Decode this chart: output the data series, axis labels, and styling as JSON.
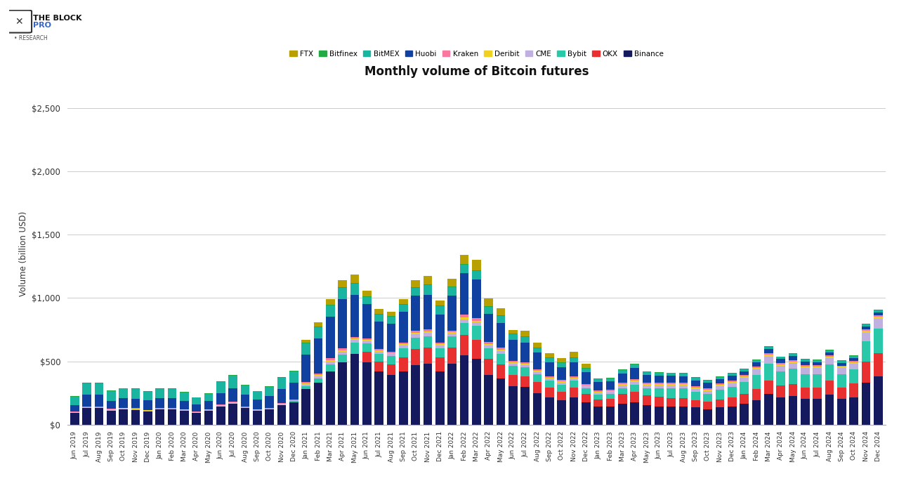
{
  "title": "Monthly volume of Bitcoin futures",
  "ylabel": "Volume (billion USD)",
  "ylim": [
    0,
    2700
  ],
  "yticks": [
    0,
    500,
    1000,
    1500,
    2000,
    2500
  ],
  "ytick_labels": [
    "$0",
    "$500",
    "$1,000",
    "$1,500",
    "$2,000",
    "$2,500"
  ],
  "background_color": "#ffffff",
  "grid_color": "#cccccc",
  "exchanges": [
    "Binance",
    "OKX",
    "Bybit",
    "CME",
    "Deribit",
    "Kraken",
    "Huobi",
    "BitMEX",
    "Bitfinex",
    "FTX"
  ],
  "colors": {
    "FTX": "#b8a000",
    "Bitfinex": "#22aa44",
    "BitMEX": "#1ab5a0",
    "Huobi": "#1040a0",
    "Kraken": "#f878a0",
    "Deribit": "#f0d020",
    "CME": "#c0b0e0",
    "Bybit": "#28c8a8",
    "OKX": "#e83030",
    "Binance": "#151a5e"
  },
  "months": [
    "Jun 2019",
    "Jul 2019",
    "Aug 2019",
    "Sep 2019",
    "Oct 2019",
    "Nov 2019",
    "Dec 2019",
    "Jan 2020",
    "Feb 2020",
    "Mar 2020",
    "Apr 2020",
    "May 2020",
    "Jun 2020",
    "Jul 2020",
    "Aug 2020",
    "Sep 2020",
    "Oct 2020",
    "Nov 2020",
    "Dec 2020",
    "Jan 2021",
    "Feb 2021",
    "Mar 2021",
    "Apr 2021",
    "May 2021",
    "Jun 2021",
    "Jul 2021",
    "Aug 2021",
    "Sep 2021",
    "Oct 2021",
    "Nov 2021",
    "Dec 2021",
    "Jan 2022",
    "Feb 2022",
    "Mar 2022",
    "Apr 2022",
    "May 2022",
    "Jun 2022",
    "Jul 2022",
    "Aug 2022",
    "Sep 2022",
    "Oct 2022",
    "Nov 2022",
    "Dec 2022",
    "Jan 2023",
    "Feb 2023",
    "Mar 2023",
    "Apr 2023",
    "May 2023",
    "Jun 2023",
    "Jul 2023",
    "Aug 2023",
    "Sep 2023",
    "Oct 2023",
    "Nov 2023",
    "Dec 2023",
    "Jan 2024",
    "Feb 2024",
    "Mar 2024",
    "Apr 2024",
    "May 2024",
    "Jun 2024",
    "Jul 2024",
    "Aug 2024",
    "Sep 2024",
    "Oct 2024",
    "Nov 2024",
    "Dec 2024"
  ],
  "data": {
    "Binance": [
      90,
      130,
      130,
      110,
      120,
      115,
      105,
      120,
      120,
      110,
      90,
      110,
      145,
      165,
      130,
      110,
      120,
      155,
      175,
      280,
      330,
      420,
      490,
      560,
      490,
      420,
      390,
      420,
      470,
      480,
      420,
      480,
      550,
      520,
      390,
      365,
      305,
      295,
      250,
      215,
      195,
      215,
      175,
      145,
      140,
      165,
      175,
      155,
      145,
      145,
      145,
      135,
      120,
      135,
      145,
      165,
      195,
      240,
      215,
      225,
      205,
      205,
      235,
      205,
      215,
      330,
      380
    ],
    "OKX": [
      0,
      0,
      0,
      0,
      0,
      0,
      0,
      0,
      0,
      0,
      0,
      0,
      0,
      0,
      0,
      0,
      0,
      0,
      0,
      0,
      0,
      0,
      0,
      0,
      85,
      75,
      85,
      110,
      130,
      130,
      110,
      130,
      160,
      150,
      130,
      110,
      85,
      85,
      85,
      75,
      65,
      75,
      65,
      55,
      65,
      75,
      85,
      75,
      75,
      65,
      65,
      60,
      60,
      65,
      70,
      75,
      85,
      110,
      95,
      95,
      85,
      85,
      110,
      85,
      110,
      165,
      185
    ],
    "Bybit": [
      0,
      0,
      0,
      0,
      0,
      0,
      0,
      0,
      0,
      0,
      0,
      0,
      0,
      0,
      0,
      0,
      0,
      0,
      10,
      25,
      35,
      55,
      65,
      85,
      65,
      65,
      65,
      75,
      85,
      85,
      75,
      85,
      95,
      110,
      85,
      85,
      75,
      75,
      65,
      55,
      55,
      55,
      45,
      35,
      35,
      45,
      55,
      55,
      65,
      75,
      75,
      65,
      65,
      75,
      85,
      95,
      110,
      130,
      110,
      120,
      110,
      110,
      130,
      110,
      110,
      165,
      195
    ],
    "CME": [
      5,
      6,
      6,
      6,
      6,
      6,
      5,
      5,
      5,
      5,
      5,
      5,
      5,
      6,
      6,
      5,
      5,
      6,
      6,
      12,
      18,
      22,
      22,
      22,
      18,
      17,
      17,
      22,
      28,
      28,
      22,
      22,
      28,
      28,
      22,
      22,
      17,
      17,
      17,
      17,
      17,
      17,
      17,
      17,
      17,
      22,
      22,
      22,
      22,
      22,
      22,
      22,
      22,
      28,
      28,
      35,
      45,
      55,
      45,
      45,
      45,
      45,
      50,
      45,
      45,
      65,
      75
    ],
    "Deribit": [
      2,
      3,
      3,
      3,
      3,
      3,
      3,
      3,
      3,
      3,
      3,
      3,
      3,
      3,
      3,
      3,
      3,
      3,
      4,
      6,
      9,
      11,
      11,
      11,
      9,
      8,
      9,
      11,
      13,
      13,
      11,
      11,
      13,
      13,
      11,
      11,
      9,
      9,
      9,
      9,
      9,
      9,
      9,
      9,
      9,
      11,
      13,
      11,
      11,
      11,
      11,
      11,
      11,
      11,
      11,
      11,
      13,
      16,
      13,
      13,
      13,
      13,
      13,
      11,
      11,
      16,
      16
    ],
    "Kraken": [
      4,
      5,
      5,
      5,
      5,
      5,
      4,
      4,
      4,
      4,
      4,
      4,
      5,
      5,
      5,
      4,
      5,
      5,
      5,
      11,
      11,
      16,
      16,
      16,
      11,
      11,
      11,
      11,
      16,
      16,
      11,
      16,
      22,
      22,
      16,
      16,
      11,
      11,
      11,
      11,
      11,
      11,
      11,
      11,
      11,
      11,
      11,
      11,
      11,
      11,
      11,
      11,
      11,
      11,
      11,
      11,
      11,
      11,
      11,
      11,
      11,
      11,
      11,
      11,
      11,
      11,
      11
    ],
    "Huobi": [
      55,
      90,
      90,
      65,
      75,
      75,
      75,
      75,
      75,
      65,
      55,
      65,
      90,
      110,
      90,
      75,
      90,
      110,
      130,
      220,
      275,
      330,
      385,
      330,
      275,
      220,
      220,
      245,
      275,
      275,
      220,
      275,
      330,
      305,
      220,
      195,
      165,
      155,
      130,
      110,
      100,
      110,
      90,
      65,
      65,
      75,
      85,
      65,
      60,
      55,
      50,
      45,
      40,
      35,
      35,
      28,
      33,
      33,
      28,
      33,
      28,
      22,
      22,
      20,
      22,
      22,
      22
    ],
    "BitMEX": [
      65,
      90,
      90,
      75,
      75,
      75,
      65,
      75,
      75,
      65,
      55,
      55,
      90,
      100,
      75,
      65,
      75,
      90,
      90,
      90,
      90,
      90,
      90,
      90,
      55,
      55,
      55,
      55,
      65,
      75,
      65,
      65,
      65,
      65,
      55,
      55,
      45,
      45,
      38,
      33,
      33,
      33,
      28,
      22,
      22,
      28,
      28,
      22,
      22,
      22,
      22,
      20,
      17,
      17,
      17,
      17,
      17,
      17,
      17,
      17,
      17,
      17,
      17,
      17,
      17,
      17,
      17
    ],
    "Bitfinex": [
      5,
      5,
      5,
      5,
      5,
      5,
      5,
      5,
      5,
      5,
      5,
      5,
      5,
      5,
      5,
      5,
      5,
      5,
      5,
      5,
      5,
      5,
      5,
      5,
      5,
      5,
      5,
      5,
      5,
      5,
      5,
      5,
      5,
      5,
      5,
      5,
      5,
      5,
      5,
      5,
      5,
      5,
      5,
      5,
      5,
      5,
      5,
      5,
      5,
      5,
      5,
      5,
      5,
      5,
      5,
      5,
      5,
      5,
      5,
      5,
      5,
      5,
      5,
      5,
      5,
      5,
      5
    ],
    "FTX": [
      0,
      0,
      0,
      0,
      0,
      0,
      0,
      0,
      0,
      0,
      0,
      0,
      0,
      0,
      0,
      0,
      0,
      0,
      0,
      22,
      33,
      44,
      55,
      65,
      44,
      38,
      33,
      38,
      55,
      65,
      44,
      65,
      75,
      85,
      65,
      55,
      33,
      44,
      38,
      33,
      38,
      44,
      38,
      0,
      0,
      0,
      0,
      0,
      0,
      0,
      0,
      0,
      0,
      0,
      0,
      0,
      0,
      0,
      0,
      0,
      0,
      0,
      0,
      0,
      0,
      0,
      0
    ]
  }
}
